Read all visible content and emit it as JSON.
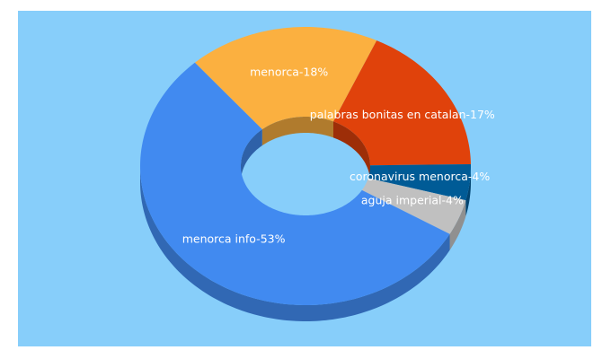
{
  "chart_data": {
    "type": "donut",
    "values": [
      18,
      17,
      4,
      4,
      53
    ],
    "value_labels": [
      "menorca-18%",
      "palabras bonitas en catalan-17%",
      "coronavirus menorca-4%",
      "aguja imperial-4%",
      "menorca info-53%"
    ],
    "colors": [
      "#fbb040",
      "#e0420b",
      "#005b96",
      "#c0c0c0",
      "#418af0"
    ],
    "background": "#87cefa"
  }
}
